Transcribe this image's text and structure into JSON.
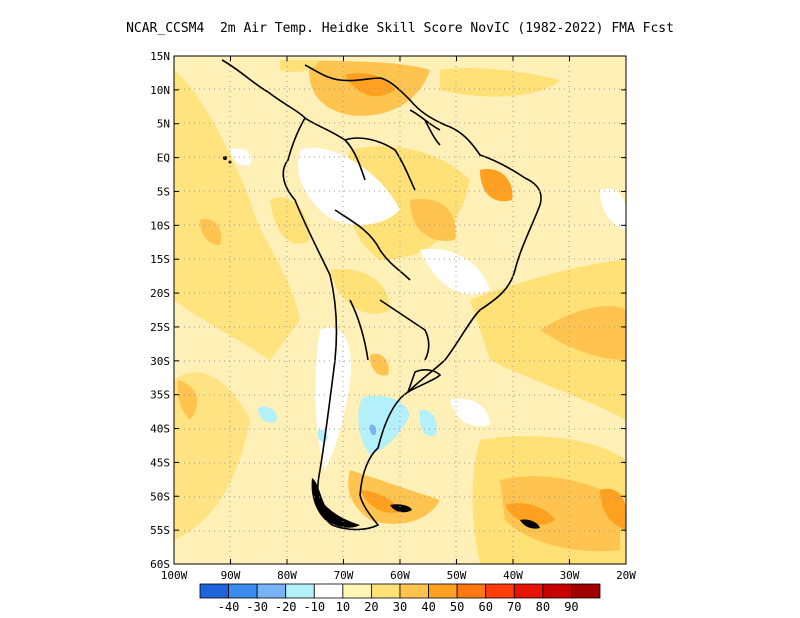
{
  "title": "NCAR_CCSM4  2m Air Temp. Heidke Skill Score NovIC (1982-2022) FMA Fcst",
  "lat_labels": [
    "15N",
    "10N",
    "5N",
    "EQ",
    "5S",
    "10S",
    "15S",
    "20S",
    "25S",
    "30S",
    "35S",
    "40S",
    "45S",
    "50S",
    "55S",
    "60S"
  ],
  "lon_labels": [
    "100W",
    "90W",
    "80W",
    "70W",
    "60W",
    "50W",
    "40W",
    "30W",
    "20W"
  ],
  "colorbar": {
    "colors": [
      "#1e64dc",
      "#3c8cf0",
      "#78b4f5",
      "#b4f0fa",
      "#ffffff",
      "#fff5b4",
      "#ffe178",
      "#ffc350",
      "#ffa020",
      "#ff7814",
      "#ff3c0a",
      "#e61405",
      "#c80000",
      "#a00000"
    ],
    "labels": [
      "-40",
      "-30",
      "-20",
      "-10",
      "10",
      "20",
      "30",
      "40",
      "50",
      "60",
      "70",
      "80",
      "90"
    ]
  },
  "legend_colors": {
    "neg40": "#1e64dc",
    "neg10": "#b4f0fa",
    "pos10": "#fff5b4",
    "pos20": "#ffe178",
    "pos30": "#ffc350",
    "pos40": "#ffa020"
  }
}
